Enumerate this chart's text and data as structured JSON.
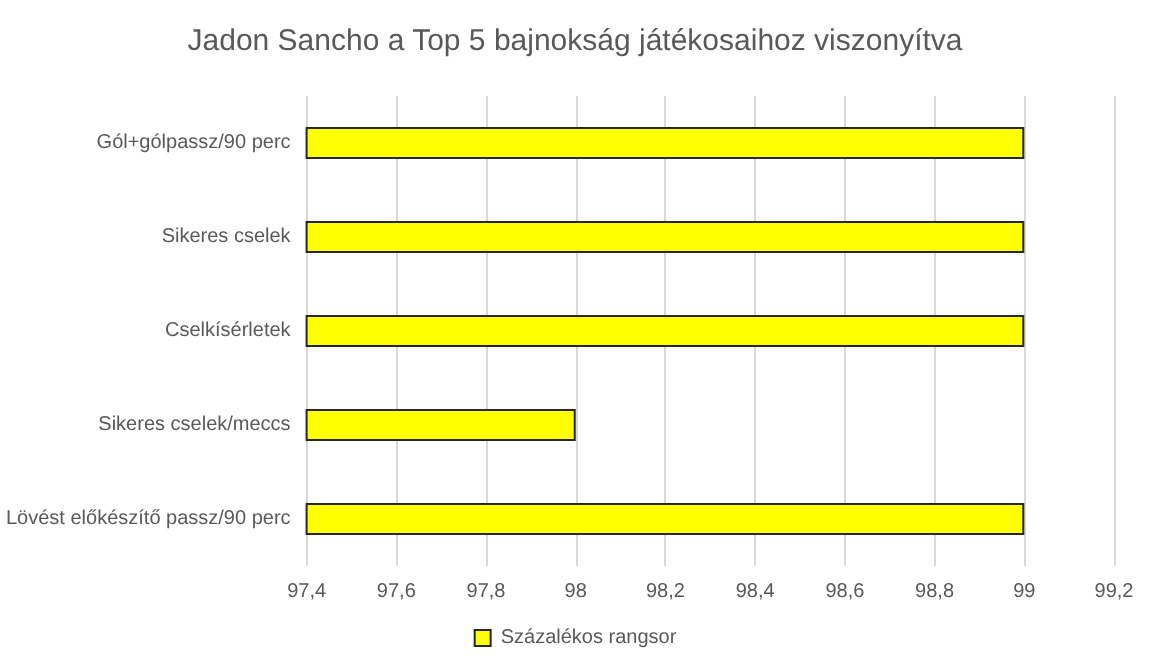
{
  "chart_data": {
    "type": "bar",
    "orientation": "horizontal",
    "title": "Jadon Sancho a Top 5 bajnokság játékosaihoz viszonyítva",
    "categories": [
      "Gól+gólpassz/90 perc",
      "Sikeres cselek",
      "Cselkísérletek",
      "Sikeres cselek/meccs",
      "Lövést előkészítő passz/90 perc"
    ],
    "series": [
      {
        "name": "Százalékos rangsor",
        "color": "#ffff00",
        "values": [
          99,
          99,
          99,
          98,
          99
        ]
      }
    ],
    "xlim": [
      97.4,
      99.2
    ],
    "xticks": [
      {
        "value": 97.4,
        "label": "97,4"
      },
      {
        "value": 97.6,
        "label": "97,6"
      },
      {
        "value": 97.8,
        "label": "97,8"
      },
      {
        "value": 98,
        "label": "98"
      },
      {
        "value": 98.2,
        "label": "98,2"
      },
      {
        "value": 98.4,
        "label": "98,4"
      },
      {
        "value": 98.6,
        "label": "98,6"
      },
      {
        "value": 98.8,
        "label": "98,8"
      },
      {
        "value": 99,
        "label": "99"
      },
      {
        "value": 99.2,
        "label": "99,2"
      }
    ],
    "grid": "x",
    "legend": "bottom"
  }
}
